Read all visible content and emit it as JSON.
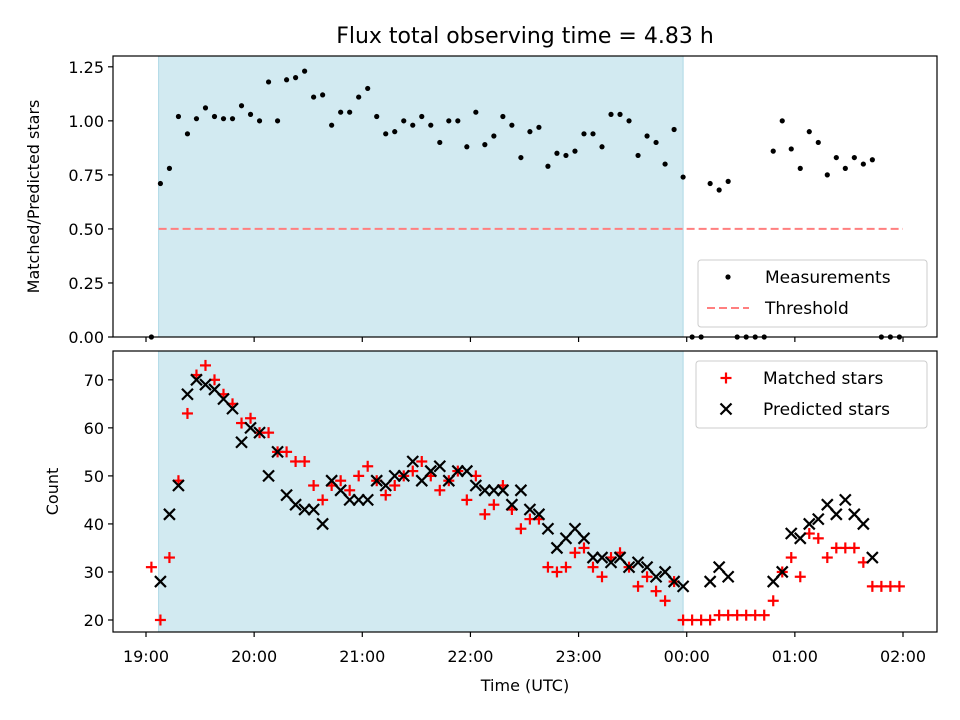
{
  "title": "Flux total observing time = 4.83 h",
  "colors": {
    "shade": "#add8e6",
    "measurement": "#000000",
    "threshold": "#ff7f7f",
    "matched": "#ff0000",
    "predicted": "#000000"
  },
  "chart_data": [
    {
      "type": "scatter",
      "panel": "top",
      "ylabel": "Matched/Predicted stars",
      "xlabel": "",
      "ylim": [
        0,
        1.3
      ],
      "yticks": [
        0.0,
        0.25,
        0.5,
        0.75,
        1.0,
        1.25
      ],
      "ytick_labels": [
        "0.00",
        "0.25",
        "0.50",
        "0.75",
        "1.00",
        "1.25"
      ],
      "xticks": [
        "19:00",
        "20:00",
        "21:00",
        "22:00",
        "23:00",
        "00:00",
        "01:00",
        "02:00"
      ],
      "shaded_span": [
        "19:07",
        "23:58"
      ],
      "legend": {
        "placement": "lower-right",
        "entries": [
          "Measurements",
          "Threshold"
        ]
      },
      "threshold": {
        "name": "Threshold",
        "value": 0.5,
        "x": [
          "19:07",
          "02:00"
        ]
      },
      "series": [
        {
          "name": "Measurements",
          "marker": "dot",
          "points": [
            [
              "19:03",
              0.0
            ],
            [
              "19:08",
              0.71
            ],
            [
              "19:13",
              0.78
            ],
            [
              "19:18",
              1.02
            ],
            [
              "19:23",
              0.94
            ],
            [
              "19:28",
              1.01
            ],
            [
              "19:33",
              1.06
            ],
            [
              "19:38",
              1.02
            ],
            [
              "19:43",
              1.01
            ],
            [
              "19:48",
              1.01
            ],
            [
              "19:53",
              1.07
            ],
            [
              "19:58",
              1.03
            ],
            [
              "20:03",
              1.0
            ],
            [
              "20:08",
              1.18
            ],
            [
              "20:13",
              1.0
            ],
            [
              "20:18",
              1.19
            ],
            [
              "20:23",
              1.2
            ],
            [
              "20:28",
              1.23
            ],
            [
              "20:33",
              1.11
            ],
            [
              "20:38",
              1.12
            ],
            [
              "20:43",
              0.98
            ],
            [
              "20:48",
              1.04
            ],
            [
              "20:53",
              1.04
            ],
            [
              "20:58",
              1.11
            ],
            [
              "21:03",
              1.15
            ],
            [
              "21:08",
              1.02
            ],
            [
              "21:13",
              0.94
            ],
            [
              "21:18",
              0.95
            ],
            [
              "21:23",
              1.0
            ],
            [
              "21:28",
              0.98
            ],
            [
              "21:33",
              1.02
            ],
            [
              "21:38",
              0.98
            ],
            [
              "21:43",
              0.9
            ],
            [
              "21:48",
              1.0
            ],
            [
              "21:53",
              1.0
            ],
            [
              "21:58",
              0.88
            ],
            [
              "22:03",
              1.04
            ],
            [
              "22:08",
              0.89
            ],
            [
              "22:13",
              0.93
            ],
            [
              "22:18",
              1.02
            ],
            [
              "22:23",
              0.98
            ],
            [
              "22:28",
              0.83
            ],
            [
              "22:33",
              0.95
            ],
            [
              "22:38",
              0.97
            ],
            [
              "22:43",
              0.79
            ],
            [
              "22:48",
              0.85
            ],
            [
              "22:53",
              0.84
            ],
            [
              "22:58",
              0.86
            ],
            [
              "23:03",
              0.94
            ],
            [
              "23:08",
              0.94
            ],
            [
              "23:13",
              0.88
            ],
            [
              "23:18",
              1.03
            ],
            [
              "23:23",
              1.03
            ],
            [
              "23:28",
              1.0
            ],
            [
              "23:33",
              0.84
            ],
            [
              "23:38",
              0.93
            ],
            [
              "23:43",
              0.9
            ],
            [
              "23:48",
              0.8
            ],
            [
              "23:53",
              0.96
            ],
            [
              "23:58",
              0.74
            ],
            [
              "00:03",
              0.0
            ],
            [
              "00:08",
              0.0
            ],
            [
              "00:13",
              0.71
            ],
            [
              "00:18",
              0.68
            ],
            [
              "00:23",
              0.72
            ],
            [
              "00:28",
              0.0
            ],
            [
              "00:33",
              0.0
            ],
            [
              "00:38",
              0.0
            ],
            [
              "00:43",
              0.0
            ],
            [
              "00:48",
              0.86
            ],
            [
              "00:53",
              1.0
            ],
            [
              "00:58",
              0.87
            ],
            [
              "01:03",
              0.78
            ],
            [
              "01:08",
              0.95
            ],
            [
              "01:13",
              0.9
            ],
            [
              "01:18",
              0.75
            ],
            [
              "01:23",
              0.83
            ],
            [
              "01:28",
              0.78
            ],
            [
              "01:33",
              0.83
            ],
            [
              "01:38",
              0.8
            ],
            [
              "01:43",
              0.82
            ],
            [
              "01:48",
              0.0
            ],
            [
              "01:53",
              0.0
            ],
            [
              "01:58",
              0.0
            ]
          ]
        }
      ]
    },
    {
      "type": "scatter",
      "panel": "bottom",
      "ylabel": "Count",
      "xlabel": "Time (UTC)",
      "ylim": [
        17.5,
        76
      ],
      "yticks": [
        20,
        30,
        40,
        50,
        60,
        70
      ],
      "ytick_labels": [
        "20",
        "30",
        "40",
        "50",
        "60",
        "70"
      ],
      "xticks": [
        "19:00",
        "20:00",
        "21:00",
        "22:00",
        "23:00",
        "00:00",
        "01:00",
        "02:00"
      ],
      "shaded_span": [
        "19:07",
        "23:58"
      ],
      "legend": {
        "placement": "upper-right",
        "entries": [
          "Matched stars",
          "Predicted stars"
        ]
      },
      "series": [
        {
          "name": "Matched stars",
          "marker": "plus",
          "points": [
            [
              "19:03",
              31
            ],
            [
              "19:08",
              20
            ],
            [
              "19:13",
              33
            ],
            [
              "19:18",
              49
            ],
            [
              "19:23",
              63
            ],
            [
              "19:28",
              71
            ],
            [
              "19:33",
              73
            ],
            [
              "19:38",
              70
            ],
            [
              "19:43",
              67
            ],
            [
              "19:48",
              65
            ],
            [
              "19:53",
              61
            ],
            [
              "19:58",
              62
            ],
            [
              "20:03",
              59
            ],
            [
              "20:08",
              59
            ],
            [
              "20:13",
              55
            ],
            [
              "20:18",
              55
            ],
            [
              "20:23",
              53
            ],
            [
              "20:28",
              53
            ],
            [
              "20:33",
              48
            ],
            [
              "20:38",
              45
            ],
            [
              "20:43",
              48
            ],
            [
              "20:48",
              49
            ],
            [
              "20:53",
              47
            ],
            [
              "20:58",
              50
            ],
            [
              "21:03",
              52
            ],
            [
              "21:08",
              49
            ],
            [
              "21:13",
              46
            ],
            [
              "21:18",
              48
            ],
            [
              "21:23",
              50
            ],
            [
              "21:28",
              51
            ],
            [
              "21:33",
              53
            ],
            [
              "21:38",
              50
            ],
            [
              "21:43",
              47
            ],
            [
              "21:48",
              49
            ],
            [
              "21:53",
              51
            ],
            [
              "21:58",
              45
            ],
            [
              "22:03",
              50
            ],
            [
              "22:08",
              42
            ],
            [
              "22:13",
              44
            ],
            [
              "22:18",
              48
            ],
            [
              "22:23",
              43
            ],
            [
              "22:28",
              39
            ],
            [
              "22:33",
              41
            ],
            [
              "22:38",
              41
            ],
            [
              "22:43",
              31
            ],
            [
              "22:48",
              30
            ],
            [
              "22:53",
              31
            ],
            [
              "22:58",
              34
            ],
            [
              "23:03",
              35
            ],
            [
              "23:08",
              31
            ],
            [
              "23:13",
              29
            ],
            [
              "23:18",
              33
            ],
            [
              "23:23",
              34
            ],
            [
              "23:28",
              31
            ],
            [
              "23:33",
              27
            ],
            [
              "23:38",
              29
            ],
            [
              "23:43",
              26
            ],
            [
              "23:48",
              24
            ],
            [
              "23:53",
              28
            ],
            [
              "23:58",
              20
            ],
            [
              "00:03",
              20
            ],
            [
              "00:08",
              20
            ],
            [
              "00:13",
              20
            ],
            [
              "00:18",
              21
            ],
            [
              "00:23",
              21
            ],
            [
              "00:28",
              21
            ],
            [
              "00:33",
              21
            ],
            [
              "00:38",
              21
            ],
            [
              "00:43",
              21
            ],
            [
              "00:48",
              24
            ],
            [
              "00:53",
              30
            ],
            [
              "00:58",
              33
            ],
            [
              "01:03",
              29
            ],
            [
              "01:08",
              38
            ],
            [
              "01:13",
              37
            ],
            [
              "01:18",
              33
            ],
            [
              "01:23",
              35
            ],
            [
              "01:28",
              35
            ],
            [
              "01:33",
              35
            ],
            [
              "01:38",
              32
            ],
            [
              "01:43",
              27
            ],
            [
              "01:48",
              27
            ],
            [
              "01:53",
              27
            ],
            [
              "01:58",
              27
            ]
          ]
        },
        {
          "name": "Predicted stars",
          "marker": "x",
          "points": [
            [
              "19:08",
              28
            ],
            [
              "19:13",
              42
            ],
            [
              "19:18",
              48
            ],
            [
              "19:23",
              67
            ],
            [
              "19:28",
              70
            ],
            [
              "19:33",
              69
            ],
            [
              "19:38",
              68
            ],
            [
              "19:43",
              66
            ],
            [
              "19:48",
              64
            ],
            [
              "19:53",
              57
            ],
            [
              "19:58",
              60
            ],
            [
              "20:03",
              59
            ],
            [
              "20:08",
              50
            ],
            [
              "20:13",
              55
            ],
            [
              "20:18",
              46
            ],
            [
              "20:23",
              44
            ],
            [
              "20:28",
              43
            ],
            [
              "20:33",
              43
            ],
            [
              "20:38",
              40
            ],
            [
              "20:43",
              49
            ],
            [
              "20:48",
              47
            ],
            [
              "20:53",
              45
            ],
            [
              "20:58",
              45
            ],
            [
              "21:03",
              45
            ],
            [
              "21:08",
              49
            ],
            [
              "21:13",
              48
            ],
            [
              "21:18",
              50
            ],
            [
              "21:23",
              50
            ],
            [
              "21:28",
              53
            ],
            [
              "21:33",
              49
            ],
            [
              "21:38",
              51
            ],
            [
              "21:43",
              52
            ],
            [
              "21:48",
              49
            ],
            [
              "21:53",
              51
            ],
            [
              "21:58",
              51
            ],
            [
              "22:03",
              48
            ],
            [
              "22:08",
              47
            ],
            [
              "22:13",
              47
            ],
            [
              "22:18",
              47
            ],
            [
              "22:23",
              44
            ],
            [
              "22:28",
              47
            ],
            [
              "22:33",
              43
            ],
            [
              "22:38",
              42
            ],
            [
              "22:43",
              39
            ],
            [
              "22:48",
              35
            ],
            [
              "22:53",
              37
            ],
            [
              "22:58",
              39
            ],
            [
              "23:03",
              37
            ],
            [
              "23:08",
              33
            ],
            [
              "23:13",
              33
            ],
            [
              "23:18",
              32
            ],
            [
              "23:23",
              33
            ],
            [
              "23:28",
              31
            ],
            [
              "23:33",
              32
            ],
            [
              "23:38",
              31
            ],
            [
              "23:43",
              29
            ],
            [
              "23:48",
              30
            ],
            [
              "23:53",
              28
            ],
            [
              "23:58",
              27
            ],
            [
              "00:13",
              28
            ],
            [
              "00:18",
              31
            ],
            [
              "00:23",
              29
            ],
            [
              "00:48",
              28
            ],
            [
              "00:53",
              30
            ],
            [
              "00:58",
              38
            ],
            [
              "01:03",
              37
            ],
            [
              "01:08",
              40
            ],
            [
              "01:13",
              41
            ],
            [
              "01:18",
              44
            ],
            [
              "01:23",
              42
            ],
            [
              "01:28",
              45
            ],
            [
              "01:33",
              42
            ],
            [
              "01:38",
              40
            ],
            [
              "01:43",
              33
            ]
          ]
        }
      ]
    }
  ]
}
